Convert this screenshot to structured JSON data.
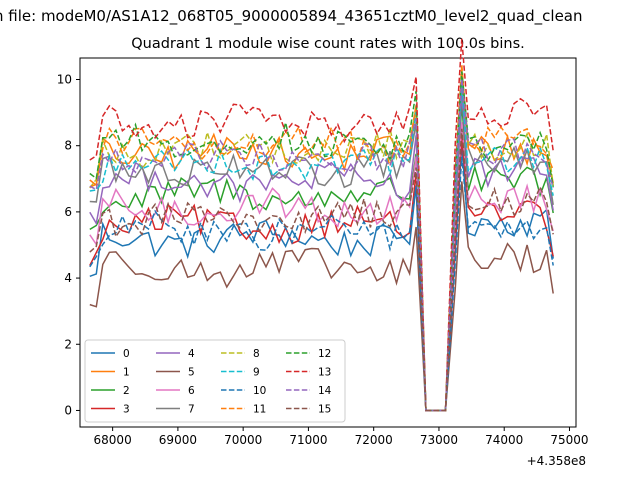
{
  "figure": {
    "suptitle": "n file: modeM0/AS1A12_068T05_9000005894_43651cztM0_level2_quad_clean",
    "title": "Quadrant 1 module wise count rates with 100.0s bins."
  },
  "chart_data": {
    "type": "line",
    "title": "Quadrant 1 module wise count rates with 100.0s bins.",
    "xlabel": "",
    "ylabel": "",
    "x_offset_label": "+4.358e8",
    "x_offset": 435800000,
    "xlim": [
      67500,
      75100
    ],
    "ylim": [
      -0.5,
      10.65
    ],
    "x_ticks": [
      68000,
      69000,
      70000,
      71000,
      72000,
      73000,
      74000,
      75000
    ],
    "y_ticks": [
      0,
      2,
      4,
      6,
      8,
      10
    ],
    "grid": false,
    "legend": {
      "placement": "bottom-left",
      "columns": 4
    },
    "x_range": {
      "segment_1": [
        67650,
        72650
      ],
      "gap": [
        72800,
        73150
      ],
      "segment_2": [
        73250,
        74750
      ],
      "step": 100
    },
    "series": [
      {
        "name": "0",
        "color": "#1f77b4",
        "dash": "solid",
        "segment_1_level": 5.2,
        "segment_2_level": 5.7
      },
      {
        "name": "1",
        "color": "#ff7f0e",
        "dash": "solid",
        "segment_1_level": 7.8,
        "segment_2_level": 7.9
      },
      {
        "name": "2",
        "color": "#2ca02c",
        "dash": "solid",
        "segment_1_level": 6.5,
        "segment_2_level": 6.9
      },
      {
        "name": "3",
        "color": "#d62728",
        "dash": "solid",
        "segment_1_level": 5.6,
        "segment_2_level": 5.9
      },
      {
        "name": "4",
        "color": "#9467bd",
        "dash": "solid",
        "segment_1_level": 6.9,
        "segment_2_level": 7.2
      },
      {
        "name": "5",
        "color": "#8c564b",
        "dash": "solid",
        "segment_1_level": 4.3,
        "segment_2_level": 4.6
      },
      {
        "name": "6",
        "color": "#e377c2",
        "dash": "solid",
        "segment_1_level": 6.1,
        "segment_2_level": 6.4
      },
      {
        "name": "7",
        "color": "#7f7f7f",
        "dash": "solid",
        "segment_1_level": 7.3,
        "segment_2_level": 7.5
      },
      {
        "name": "8",
        "color": "#bcbd22",
        "dash": "dashed",
        "segment_1_level": 7.9,
        "segment_2_level": 8.0
      },
      {
        "name": "9",
        "color": "#17becf",
        "dash": "dashed",
        "segment_1_level": 7.5,
        "segment_2_level": 7.6
      },
      {
        "name": "10",
        "color": "#1f77b4",
        "dash": "dashed",
        "segment_1_level": 5.4,
        "segment_2_level": 5.4
      },
      {
        "name": "11",
        "color": "#ff7f0e",
        "dash": "dashed",
        "segment_1_level": 8.0,
        "segment_2_level": 8.2
      },
      {
        "name": "12",
        "color": "#2ca02c",
        "dash": "dashed",
        "segment_1_level": 8.1,
        "segment_2_level": 8.0
      },
      {
        "name": "13",
        "color": "#d62728",
        "dash": "dashed",
        "segment_1_level": 8.7,
        "segment_2_level": 9.0
      },
      {
        "name": "14",
        "color": "#9467bd",
        "dash": "dashed",
        "segment_1_level": 7.6,
        "segment_2_level": 7.8
      },
      {
        "name": "15",
        "color": "#8c564b",
        "dash": "dashed",
        "segment_1_level": 5.8,
        "segment_2_level": 6.3
      }
    ]
  }
}
